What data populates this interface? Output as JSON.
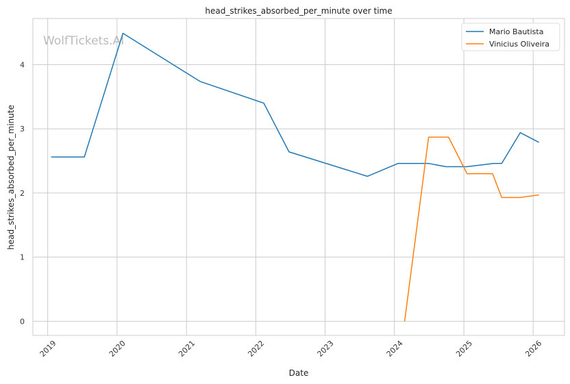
{
  "chart_data": {
    "type": "line",
    "title": "head_strikes_absorbed_per_minute over time",
    "xlabel": "Date",
    "ylabel": "head_strikes_absorbed_per_minute",
    "watermark": "WolfTickets.AI",
    "x_ticks": [
      "2019",
      "2020",
      "2021",
      "2022",
      "2023",
      "2024",
      "2025",
      "2026"
    ],
    "y_ticks": [
      "0",
      "1",
      "2",
      "3",
      "4"
    ],
    "xlim": [
      "2018-10-15",
      "2026-06-15"
    ],
    "ylim": [
      -0.22,
      4.72
    ],
    "grid": true,
    "legend_position": "top-right",
    "series": [
      {
        "name": "Mario Bautista",
        "color": "#1f77b4",
        "points": [
          [
            "2019-01-19",
            2.56
          ],
          [
            "2019-07-13",
            2.56
          ],
          [
            "2020-02-01",
            4.49
          ],
          [
            "2021-03-13",
            3.74
          ],
          [
            "2022-02-12",
            3.4
          ],
          [
            "2022-06-25",
            2.64
          ],
          [
            "2023-08-12",
            2.26
          ],
          [
            "2024-01-20",
            2.46
          ],
          [
            "2024-06-29",
            2.46
          ],
          [
            "2024-09-28",
            2.41
          ],
          [
            "2025-01-18",
            2.41
          ],
          [
            "2025-06-07",
            2.46
          ],
          [
            "2025-07-19",
            2.46
          ],
          [
            "2025-10-25",
            2.94
          ],
          [
            "2026-01-31",
            2.79
          ]
        ]
      },
      {
        "name": "Vinicius Oliveira",
        "color": "#ff7f0e",
        "points": [
          [
            "2024-02-24",
            0.0
          ],
          [
            "2024-06-29",
            2.87
          ],
          [
            "2024-10-12",
            2.87
          ],
          [
            "2025-01-18",
            2.3
          ],
          [
            "2025-06-01",
            2.3
          ],
          [
            "2025-07-19",
            1.93
          ],
          [
            "2025-10-25",
            1.93
          ],
          [
            "2026-01-31",
            1.97
          ]
        ]
      }
    ]
  }
}
